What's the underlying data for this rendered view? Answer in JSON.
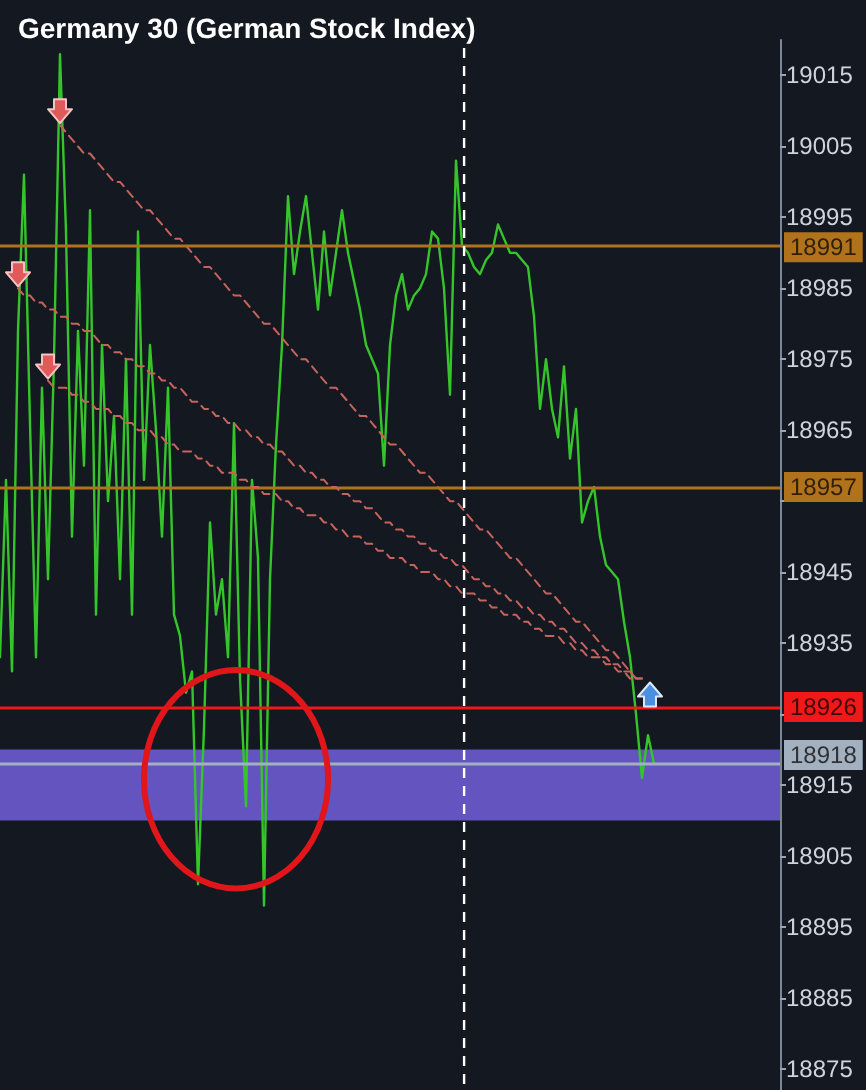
{
  "chart_data": {
    "type": "line",
    "title": "Germany 30 (German Stock Index)",
    "categories": [
      null,
      null,
      null,
      null,
      null,
      null,
      null,
      null,
      null,
      null,
      null,
      null,
      null,
      null,
      null,
      null,
      null,
      null,
      null,
      null,
      null,
      null,
      null,
      null,
      null,
      null,
      null,
      null,
      null,
      null,
      null,
      null,
      null,
      null,
      null,
      null,
      null,
      null,
      null,
      null,
      null,
      null,
      null,
      null,
      null,
      null,
      null,
      null,
      null,
      null,
      null,
      null,
      null,
      null,
      null,
      null,
      null,
      null,
      null,
      null,
      null,
      null,
      null,
      null,
      null,
      null,
      null,
      null,
      null,
      null,
      null,
      null,
      null,
      null,
      null,
      null,
      null,
      null,
      null,
      null,
      null,
      null,
      null,
      null,
      null,
      null,
      null,
      null,
      null,
      null,
      null,
      null,
      null,
      null,
      null,
      null,
      null,
      null,
      null,
      null,
      null,
      null,
      null,
      null,
      null,
      null,
      null,
      null,
      null,
      null,
      null,
      null,
      null,
      null,
      null,
      null,
      null,
      null,
      null,
      null,
      null,
      null,
      null,
      null,
      null,
      null,
      null,
      null,
      null,
      null,
      null
    ],
    "ylim": [
      18872,
      19020
    ],
    "yticks": [
      18875,
      18885,
      18895,
      18905,
      18915,
      {
        "value": 18925,
        "label": null
      },
      18935,
      18945,
      {
        "value": 18955,
        "label": null
      },
      18965,
      18975,
      18985,
      18995,
      19005,
      19015
    ],
    "tick_labels": "y",
    "marker": "none",
    "line_style": "solid",
    "series": [
      {
        "color": "#35c52a",
        "values": [
          18933,
          18958,
          18931,
          18979,
          19001,
          18966,
          18933,
          18971,
          18944,
          18975,
          19018,
          18993,
          18950,
          18979,
          18960,
          18996,
          18939,
          18977,
          18955,
          18967,
          18944,
          18975,
          18939,
          18993,
          18958,
          18977,
          18965,
          18950,
          18971,
          18939,
          18936,
          18928,
          18931,
          18901,
          18923,
          18952,
          18939,
          18944,
          18933,
          18966,
          18930,
          18912,
          18958,
          18947,
          18898,
          18944,
          18963,
          18977,
          18998,
          18987,
          18993,
          18998,
          18990,
          18982,
          18993,
          18984,
          18990,
          18996,
          18990,
          18986,
          18982,
          18977,
          18975,
          18973,
          18960,
          18977,
          18984,
          18987,
          18982,
          18984,
          18985,
          18987,
          18993,
          18992,
          18985,
          18970,
          19003,
          18991,
          18990,
          18988,
          18987,
          18989,
          18990,
          18994,
          18992,
          18990,
          18990,
          18989,
          18988,
          18981,
          18968,
          18975,
          18968,
          18964,
          18974,
          18961,
          18968,
          18952,
          18955,
          18957,
          18950,
          18946,
          18945,
          18944,
          18938,
          18933,
          18925,
          18916,
          18922,
          18918,
          null,
          null,
          null,
          null,
          null,
          null,
          null,
          null,
          null,
          null,
          null,
          null,
          null,
          null,
          null,
          null,
          null,
          null,
          null,
          null,
          null
        ]
      },
      {
        "color": "#c8635c",
        "line_style": "dashed",
        "values": [
          null,
          null,
          null,
          null,
          null,
          null,
          null,
          null,
          null,
          null,
          19008,
          19007,
          19006,
          19005,
          19004,
          19004,
          19003,
          19002,
          19001,
          19000,
          19000,
          18999,
          18998,
          18997,
          18996,
          18996,
          18995,
          18994,
          18993,
          18992,
          18992,
          18991,
          18990,
          18989,
          18988,
          18988,
          18987,
          18986,
          18985,
          18984,
          18984,
          18983,
          18982,
          18981,
          18980,
          18980,
          18979,
          18978,
          18977,
          18976,
          18975,
          18975,
          18974,
          18973,
          18972,
          18971,
          18971,
          18970,
          18969,
          18968,
          18967,
          18967,
          18966,
          18965,
          18964,
          18963,
          18963,
          18962,
          18961,
          18960,
          18959,
          18959,
          18958,
          18957,
          18956,
          18955,
          18955,
          18954,
          18953,
          18952,
          18951,
          18951,
          18950,
          18949,
          18948,
          18947,
          18947,
          18946,
          18945,
          18944,
          18943,
          18942,
          18942,
          18941,
          18940,
          18939,
          18938,
          18938,
          18937,
          18936,
          18935,
          18934,
          18934,
          18933,
          18932,
          18931,
          18930,
          18930,
          null,
          null,
          null,
          null,
          null,
          null,
          null,
          null,
          null,
          null,
          null,
          null,
          null,
          null,
          null,
          null,
          null,
          null,
          null,
          null,
          null,
          null,
          null
        ]
      },
      {
        "color": "#c8635c",
        "line_style": "dashed",
        "values": [
          null,
          null,
          null,
          18985,
          18984,
          18984,
          18983,
          18983,
          18982,
          18982,
          18981,
          18981,
          18980,
          18980,
          18979,
          18979,
          18978,
          18977,
          18977,
          18976,
          18976,
          18975,
          18975,
          18974,
          18974,
          18973,
          18973,
          18972,
          18972,
          18971,
          18971,
          18970,
          18969,
          18969,
          18968,
          18968,
          18967,
          18967,
          18966,
          18966,
          18965,
          18965,
          18964,
          18964,
          18963,
          18963,
          18962,
          18962,
          18961,
          18960,
          18960,
          18959,
          18959,
          18958,
          18958,
          18957,
          18957,
          18956,
          18956,
          18955,
          18955,
          18954,
          18954,
          18953,
          18952,
          18952,
          18951,
          18951,
          18950,
          18950,
          18949,
          18949,
          18948,
          18948,
          18947,
          18947,
          18946,
          18946,
          18945,
          18944,
          18944,
          18943,
          18943,
          18942,
          18942,
          18941,
          18941,
          18940,
          18940,
          18939,
          18939,
          18938,
          18938,
          18937,
          18937,
          18936,
          18935,
          18935,
          18934,
          18934,
          18933,
          18933,
          18932,
          18932,
          18931,
          18931,
          18930,
          18930,
          null,
          null,
          null,
          null,
          null,
          null,
          null,
          null,
          null,
          null,
          null,
          null,
          null,
          null,
          null,
          null,
          null,
          null,
          null,
          null,
          null,
          null,
          null
        ]
      },
      {
        "color": "#c8635c",
        "line_style": "dashed",
        "values": [
          null,
          null,
          null,
          null,
          null,
          null,
          null,
          null,
          18972,
          18971,
          18971,
          18971,
          18970,
          18970,
          18969,
          18969,
          18968,
          18968,
          18968,
          18967,
          18967,
          18966,
          18966,
          18965,
          18965,
          18965,
          18964,
          18964,
          18963,
          18963,
          18962,
          18962,
          18962,
          18961,
          18961,
          18960,
          18960,
          18959,
          18959,
          18959,
          18958,
          18958,
          18957,
          18957,
          18956,
          18956,
          18956,
          18955,
          18955,
          18954,
          18954,
          18953,
          18953,
          18953,
          18952,
          18952,
          18951,
          18951,
          18950,
          18950,
          18950,
          18949,
          18949,
          18948,
          18948,
          18947,
          18947,
          18947,
          18946,
          18946,
          18945,
          18945,
          18945,
          18944,
          18944,
          18943,
          18943,
          18942,
          18942,
          18942,
          18941,
          18941,
          18940,
          18940,
          18939,
          18939,
          18939,
          18938,
          18938,
          18937,
          18937,
          18936,
          18936,
          18936,
          18935,
          18935,
          18934,
          18934,
          18933,
          18933,
          18933,
          18932,
          18932,
          18931,
          18931,
          18930,
          18930,
          18930,
          null,
          null,
          null,
          null,
          null,
          null,
          null,
          null,
          null,
          null,
          null,
          null,
          null,
          null,
          null,
          null,
          null,
          null,
          null,
          null,
          null,
          null,
          null
        ]
      }
    ],
    "ref_lines": [
      {
        "axis": "y",
        "value": 18991,
        "label": "18991",
        "color": "#b0731c"
      },
      {
        "axis": "y",
        "value": 18957,
        "label": "18957",
        "color": "#b0731c"
      },
      {
        "axis": "y",
        "value": 18926,
        "label": "18926",
        "color": "#f01818"
      },
      {
        "axis": "y",
        "value": 18918,
        "label": "18918",
        "color": "#a3b0bf"
      }
    ],
    "bands": [
      {
        "axis": "y",
        "from": 18910,
        "to": 18920,
        "color": "#6a5acd"
      }
    ]
  }
}
